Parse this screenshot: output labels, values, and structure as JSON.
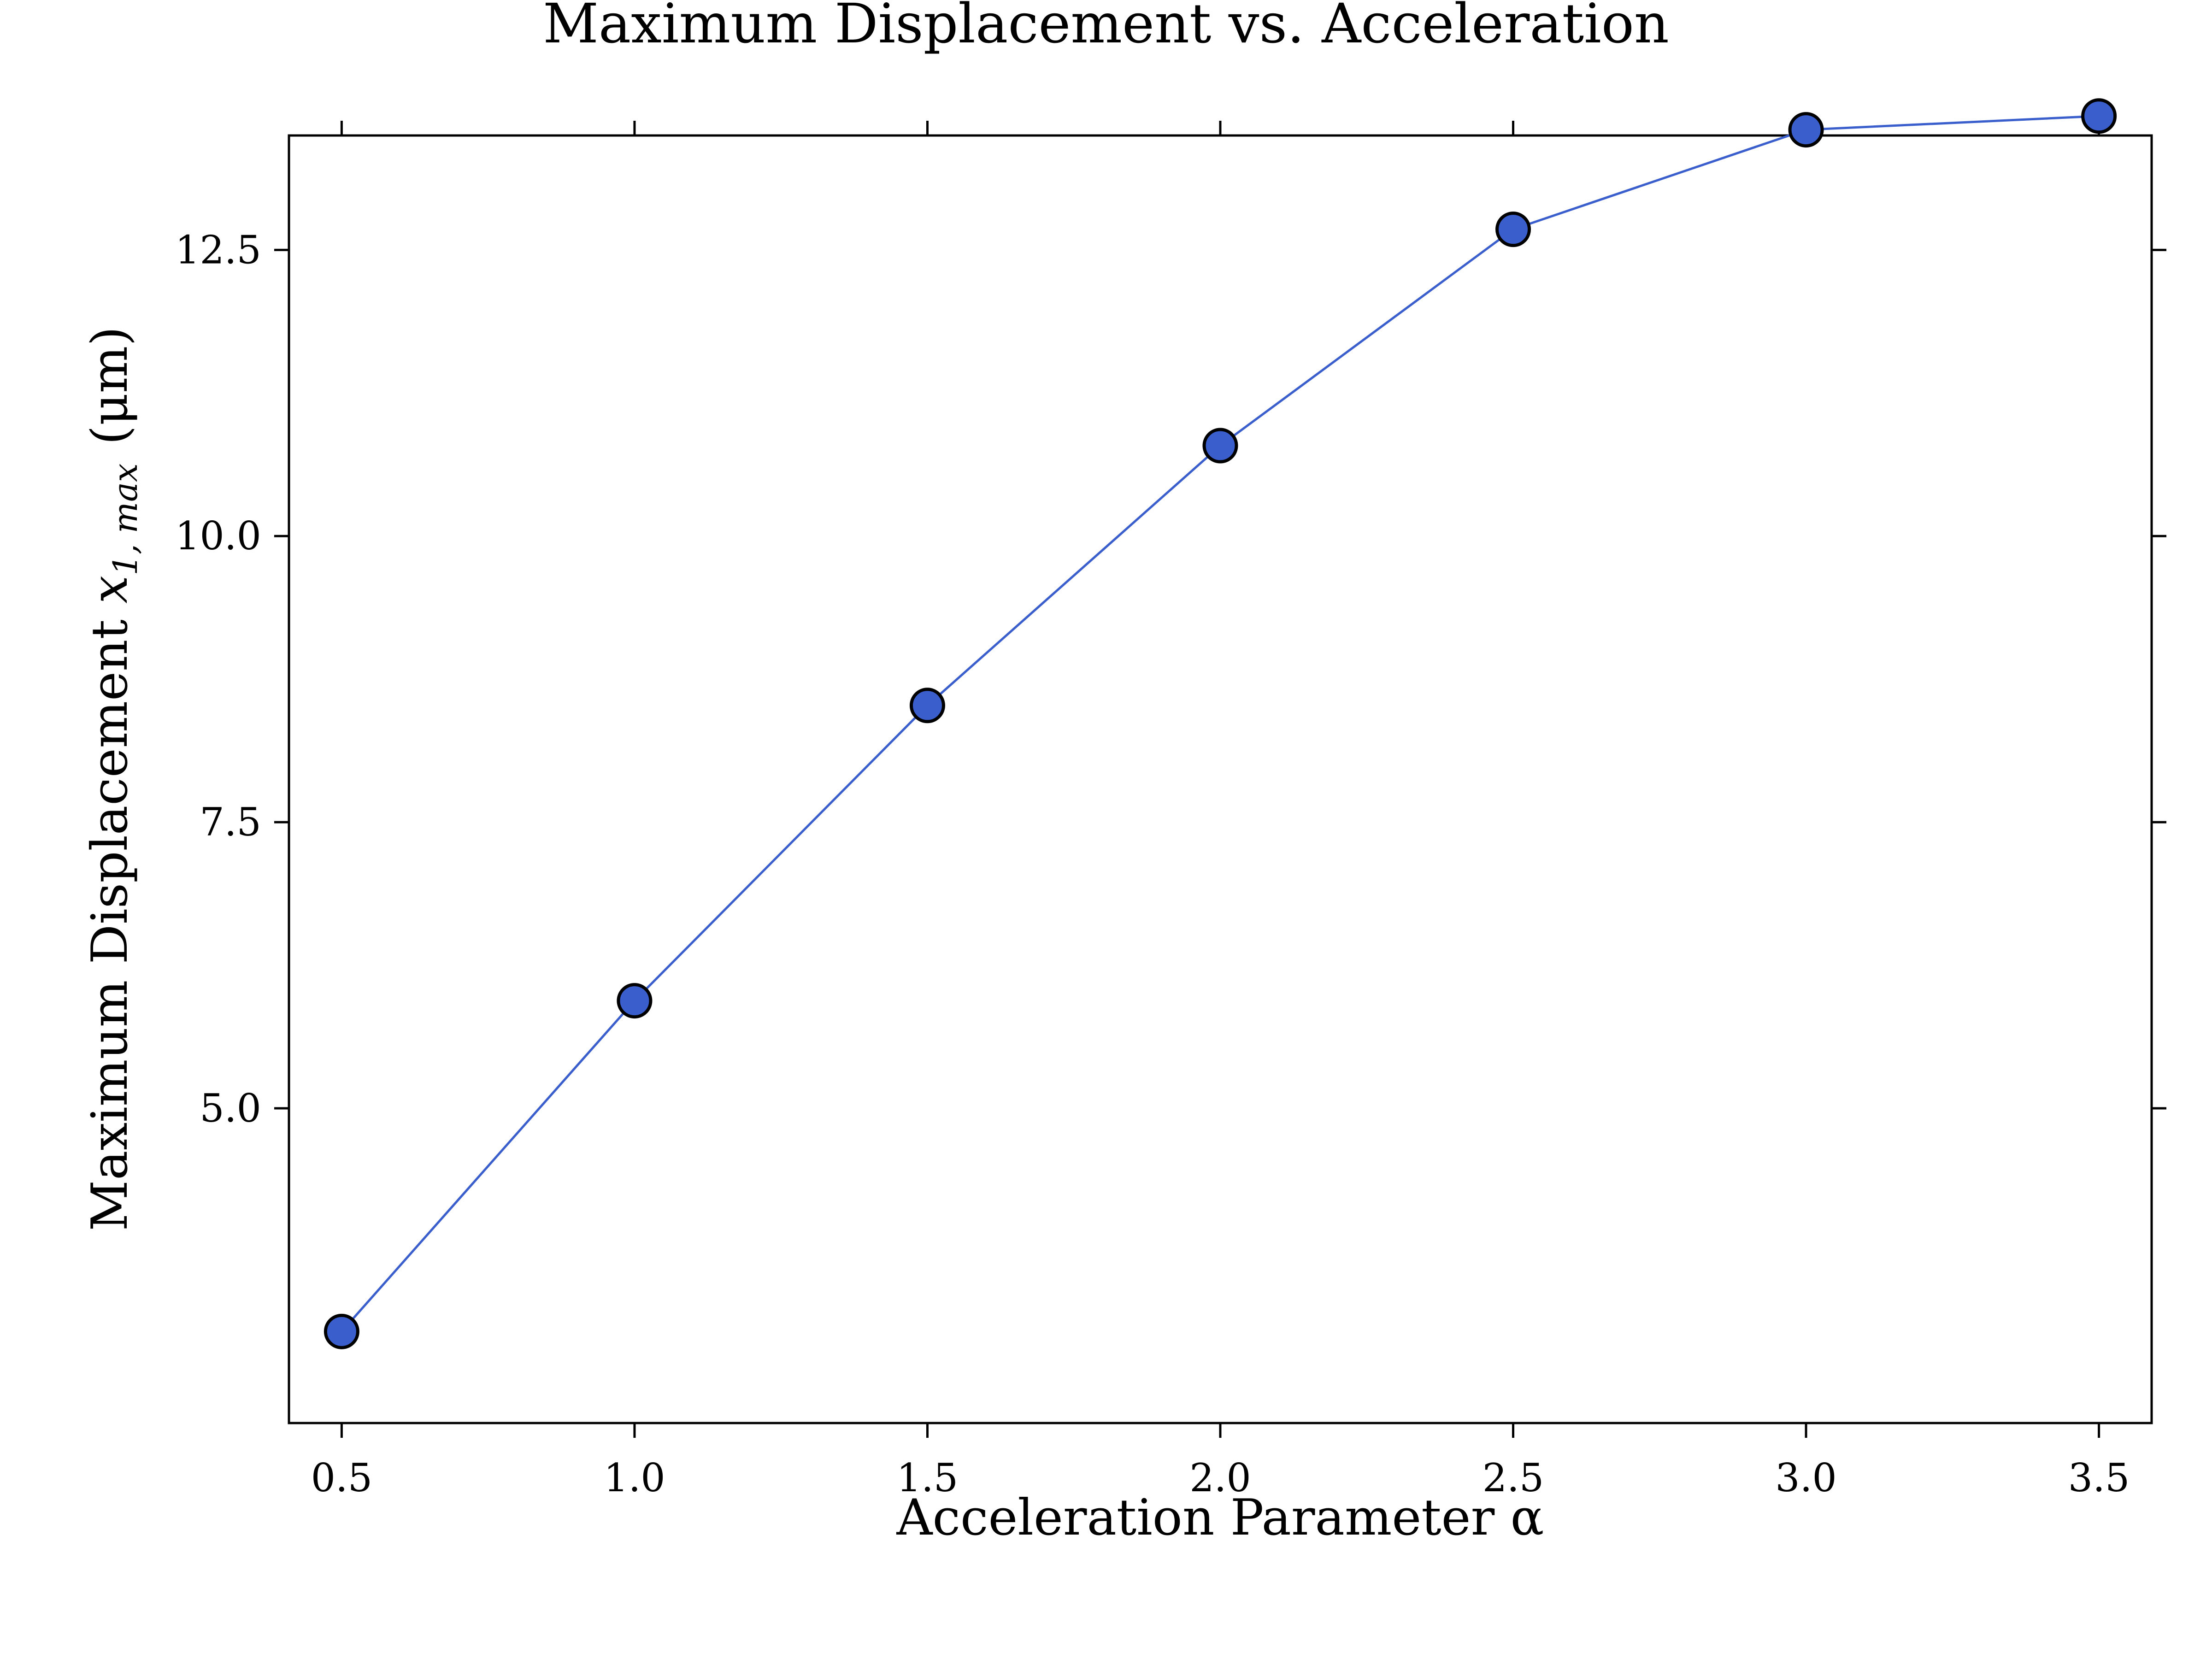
{
  "chart_data": {
    "type": "line",
    "title": "Maximum Displacement vs. Acceleration",
    "xlabel": "Acceleration Parameter α",
    "ylabel": {
      "prefix": "Maximum Displacement ",
      "variable": "x",
      "subscript": "1, max",
      "unit": "(μm)"
    },
    "xlim": [
      0.41,
      3.59
    ],
    "ylim": [
      2.25,
      13.5
    ],
    "x_ticks": [
      "0.5",
      "1.0",
      "1.5",
      "2.0",
      "2.5",
      "3.0",
      "3.5"
    ],
    "y_ticks": [
      "5.0",
      "7.5",
      "10.0",
      "12.5"
    ],
    "grid": false,
    "series": [
      {
        "x": [
          0.5,
          1.0,
          1.5,
          2.0,
          2.5,
          3.0,
          3.5
        ],
        "y": [
          3.05,
          5.94,
          8.52,
          10.79,
          12.68,
          13.55,
          13.67
        ],
        "color": "#3a5fcd",
        "marker": "circle",
        "marker_edge_color": "#000000"
      }
    ]
  }
}
